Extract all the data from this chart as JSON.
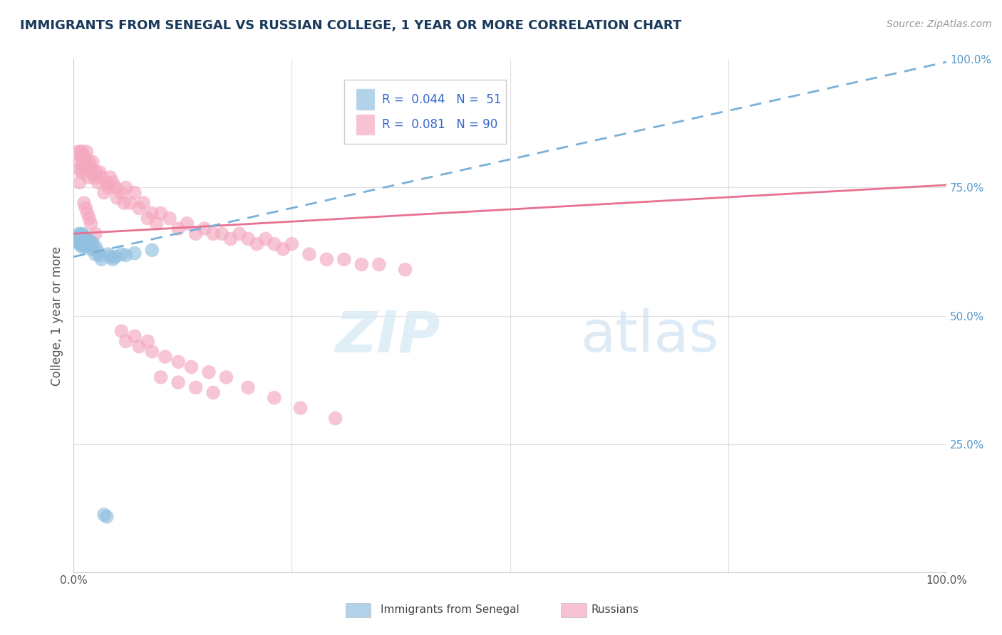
{
  "title": "IMMIGRANTS FROM SENEGAL VS RUSSIAN COLLEGE, 1 YEAR OR MORE CORRELATION CHART",
  "source_text": "Source: ZipAtlas.com",
  "ylabel": "College, 1 year or more",
  "xlim": [
    0.0,
    1.0
  ],
  "ylim": [
    0.0,
    1.0
  ],
  "bottom_legend": [
    "Immigrants from Senegal",
    "Russians"
  ],
  "title_color": "#1a3a5c",
  "title_fontsize": 13,
  "watermark_zip": "ZIP",
  "watermark_atlas": "atlas",
  "r_senegal": 0.044,
  "n_senegal": 51,
  "r_russian": 0.081,
  "n_russian": 90,
  "senegal_color": "#92c0e0",
  "russian_color": "#f4a8bf",
  "trend_senegal_color": "#7ab0d8",
  "trend_russian_color": "#e87090",
  "grid_color": "#e0e0e0",
  "background_color": "#ffffff",
  "senegal_x": [
    0.005,
    0.005,
    0.006,
    0.006,
    0.007,
    0.007,
    0.007,
    0.008,
    0.008,
    0.009,
    0.009,
    0.009,
    0.01,
    0.01,
    0.01,
    0.01,
    0.011,
    0.011,
    0.011,
    0.012,
    0.012,
    0.012,
    0.013,
    0.013,
    0.013,
    0.014,
    0.014,
    0.015,
    0.015,
    0.016,
    0.017,
    0.018,
    0.019,
    0.02,
    0.021,
    0.022,
    0.025,
    0.025,
    0.028,
    0.03,
    0.032,
    0.035,
    0.038,
    0.04,
    0.042,
    0.045,
    0.048,
    0.055,
    0.06,
    0.07,
    0.09
  ],
  "senegal_y": [
    0.645,
    0.655,
    0.65,
    0.66,
    0.64,
    0.648,
    0.655,
    0.642,
    0.658,
    0.635,
    0.645,
    0.652,
    0.638,
    0.648,
    0.655,
    0.66,
    0.642,
    0.65,
    0.655,
    0.64,
    0.648,
    0.655,
    0.635,
    0.645,
    0.65,
    0.642,
    0.65,
    0.638,
    0.645,
    0.65,
    0.635,
    0.642,
    0.645,
    0.63,
    0.638,
    0.642,
    0.62,
    0.635,
    0.625,
    0.618,
    0.61,
    0.112,
    0.108,
    0.62,
    0.615,
    0.61,
    0.615,
    0.62,
    0.618,
    0.622,
    0.628
  ],
  "russian_x": [
    0.005,
    0.006,
    0.007,
    0.007,
    0.008,
    0.009,
    0.009,
    0.01,
    0.01,
    0.011,
    0.011,
    0.012,
    0.013,
    0.014,
    0.015,
    0.016,
    0.017,
    0.018,
    0.019,
    0.02,
    0.022,
    0.024,
    0.026,
    0.028,
    0.03,
    0.032,
    0.035,
    0.038,
    0.04,
    0.042,
    0.045,
    0.048,
    0.05,
    0.055,
    0.058,
    0.06,
    0.065,
    0.07,
    0.075,
    0.08,
    0.085,
    0.09,
    0.095,
    0.1,
    0.11,
    0.12,
    0.13,
    0.14,
    0.15,
    0.16,
    0.17,
    0.18,
    0.19,
    0.2,
    0.21,
    0.22,
    0.23,
    0.24,
    0.25,
    0.27,
    0.29,
    0.31,
    0.33,
    0.35,
    0.38,
    0.06,
    0.075,
    0.09,
    0.105,
    0.12,
    0.135,
    0.155,
    0.175,
    0.2,
    0.23,
    0.26,
    0.3,
    0.055,
    0.07,
    0.085,
    0.1,
    0.12,
    0.14,
    0.16,
    0.012,
    0.014,
    0.016,
    0.018,
    0.02,
    0.025
  ],
  "russian_y": [
    0.82,
    0.8,
    0.785,
    0.76,
    0.82,
    0.81,
    0.78,
    0.82,
    0.81,
    0.8,
    0.79,
    0.8,
    0.81,
    0.79,
    0.82,
    0.79,
    0.77,
    0.8,
    0.78,
    0.79,
    0.8,
    0.77,
    0.78,
    0.76,
    0.78,
    0.77,
    0.74,
    0.76,
    0.75,
    0.77,
    0.76,
    0.75,
    0.73,
    0.74,
    0.72,
    0.75,
    0.72,
    0.74,
    0.71,
    0.72,
    0.69,
    0.7,
    0.68,
    0.7,
    0.69,
    0.67,
    0.68,
    0.66,
    0.67,
    0.66,
    0.66,
    0.65,
    0.66,
    0.65,
    0.64,
    0.65,
    0.64,
    0.63,
    0.64,
    0.62,
    0.61,
    0.61,
    0.6,
    0.6,
    0.59,
    0.45,
    0.44,
    0.43,
    0.42,
    0.41,
    0.4,
    0.39,
    0.38,
    0.36,
    0.34,
    0.32,
    0.3,
    0.47,
    0.46,
    0.45,
    0.38,
    0.37,
    0.36,
    0.35,
    0.72,
    0.71,
    0.7,
    0.69,
    0.68,
    0.66
  ]
}
